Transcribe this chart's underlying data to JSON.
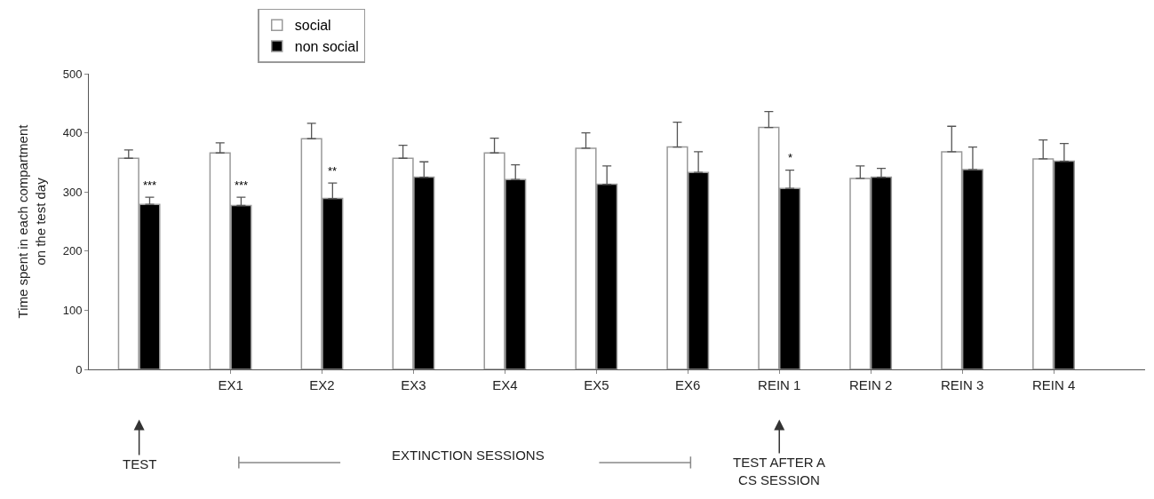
{
  "chart_data": {
    "type": "bar",
    "categories": [
      null,
      "EX1",
      "EX2",
      "EX3",
      "EX4",
      "EX5",
      "EX6",
      "REIN 1",
      "REIN 2",
      "REIN 3",
      "REIN 4"
    ],
    "ylabel": "Time spent in each compartment\non the test day",
    "ylim": [
      0,
      500
    ],
    "yticks": [
      0,
      100,
      200,
      300,
      400,
      500
    ],
    "series": [
      {
        "name": "social",
        "color": "#ffffff",
        "values": [
          357,
          366,
          390,
          357,
          366,
          374,
          376,
          409,
          323,
          368,
          356
        ],
        "errors": [
          [
            357,
            371
          ],
          [
            366,
            383
          ],
          [
            390,
            416
          ],
          [
            357,
            379
          ],
          [
            366,
            391
          ],
          [
            374,
            400
          ],
          [
            376,
            418
          ],
          [
            409,
            436
          ],
          [
            323,
            344
          ],
          [
            368,
            411
          ],
          [
            356,
            388
          ]
        ]
      },
      {
        "name": "non social",
        "color": "#000000",
        "values": [
          279,
          277,
          289,
          325,
          321,
          313,
          333,
          306,
          325,
          338,
          352
        ],
        "errors": [
          [
            279,
            291
          ],
          [
            277,
            291
          ],
          [
            289,
            315
          ],
          [
            325,
            351
          ],
          [
            321,
            346
          ],
          [
            313,
            344
          ],
          [
            333,
            368
          ],
          [
            306,
            337
          ],
          [
            325,
            340
          ],
          [
            338,
            376
          ],
          [
            352,
            382
          ]
        ],
        "value_labels": [
          "***",
          "***",
          "**",
          null,
          null,
          null,
          null,
          "*",
          null,
          null,
          null
        ]
      }
    ],
    "annotations": [
      "TEST",
      "EXTINCTION SESSIONS",
      "TEST AFTER A\nCS SESSION"
    ],
    "legend": "top"
  }
}
